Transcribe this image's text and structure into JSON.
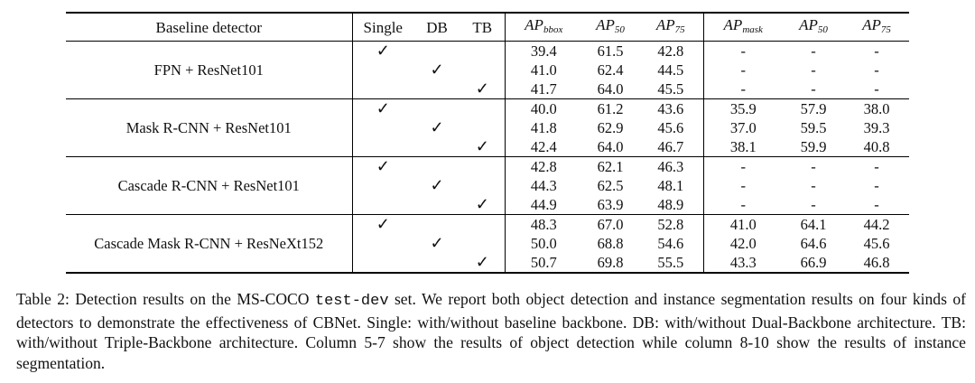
{
  "table": {
    "header": [
      "Baseline detector",
      "Single",
      "DB",
      "TB",
      {
        "main": "AP",
        "sub": "bbox"
      },
      {
        "main": "AP",
        "sub": "50"
      },
      {
        "main": "AP",
        "sub": "75"
      },
      {
        "main": "AP",
        "sub": "mask"
      },
      {
        "main": "AP",
        "sub": "50"
      },
      {
        "main": "AP",
        "sub": "75"
      }
    ],
    "groups": [
      {
        "detector": "FPN + ResNet101",
        "rows": [
          {
            "marks": [
              "✓",
              null,
              null
            ],
            "values": [
              "39.4",
              "61.5",
              "42.8",
              "-",
              "-",
              "-"
            ],
            "bold": false
          },
          {
            "marks": [
              null,
              "✓",
              null
            ],
            "values": [
              "41.0",
              "62.4",
              "44.5",
              "-",
              "-",
              "-"
            ],
            "bold": false
          },
          {
            "marks": [
              null,
              null,
              "✓"
            ],
            "values": [
              "41.7",
              "64.0",
              "45.5",
              "-",
              "-",
              "-"
            ],
            "bold": true
          }
        ]
      },
      {
        "detector": "Mask R-CNN + ResNet101",
        "rows": [
          {
            "marks": [
              "✓",
              null,
              null
            ],
            "values": [
              "40.0",
              "61.2",
              "43.6",
              "35.9",
              "57.9",
              "38.0"
            ],
            "bold": false
          },
          {
            "marks": [
              null,
              "✓",
              null
            ],
            "values": [
              "41.8",
              "62.9",
              "45.6",
              "37.0",
              "59.5",
              "39.3"
            ],
            "bold": false
          },
          {
            "marks": [
              null,
              null,
              "✓"
            ],
            "values": [
              "42.4",
              "64.0",
              "46.7",
              "38.1",
              "59.9",
              "40.8"
            ],
            "bold": true
          }
        ]
      },
      {
        "detector": "Cascade R-CNN + ResNet101",
        "rows": [
          {
            "marks": [
              "✓",
              null,
              null
            ],
            "values": [
              "42.8",
              "62.1",
              "46.3",
              "-",
              "-",
              "-"
            ],
            "bold": false
          },
          {
            "marks": [
              null,
              "✓",
              null
            ],
            "values": [
              "44.3",
              "62.5",
              "48.1",
              "-",
              "-",
              "-"
            ],
            "bold": false
          },
          {
            "marks": [
              null,
              null,
              "✓"
            ],
            "values": [
              "44.9",
              "63.9",
              "48.9",
              "-",
              "-",
              "-"
            ],
            "bold": true
          }
        ]
      },
      {
        "detector": "Cascade Mask R-CNN + ResNeXt152",
        "rows": [
          {
            "marks": [
              "✓",
              null,
              null
            ],
            "values": [
              "48.3",
              "67.0",
              "52.8",
              "41.0",
              "64.1",
              "44.2"
            ],
            "bold": false
          },
          {
            "marks": [
              null,
              "✓",
              null
            ],
            "values": [
              "50.0",
              "68.8",
              "54.6",
              "42.0",
              "64.6",
              "45.6"
            ],
            "bold": false
          },
          {
            "marks": [
              null,
              null,
              "✓"
            ],
            "values": [
              "50.7",
              "69.8",
              "55.5",
              "43.3",
              "66.9",
              "46.8"
            ],
            "bold": true
          }
        ]
      }
    ]
  },
  "caption": {
    "before": "Table 2: Detection results on the MS-COCO",
    "code": "test-dev",
    "after": "set. We report both object detection and instance segmentation results on four kinds of detectors to demonstrate the effectiveness of CBNet. Single: with/without baseline backbone. DB: with/without Dual-Backbone architecture. TB: with/without Triple-Backbone architecture. Column 5-7 show the results of object detection while column 8-10 show the results of instance segmentation."
  }
}
